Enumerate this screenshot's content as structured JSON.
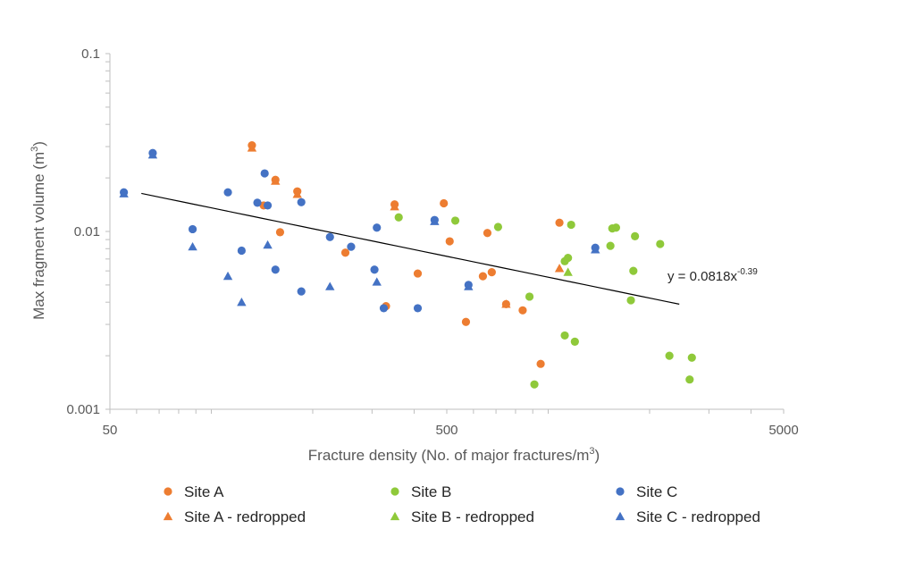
{
  "chart_data": {
    "type": "scatter",
    "x_scale": "log",
    "y_scale": "log",
    "xlabel": "Fracture density (No. of major fractures/m",
    "xlabel_sup": "3",
    "xlabel_end": ")",
    "ylabel": "Max fragment volume (m",
    "ylabel_sup": "3",
    "ylabel_end": ")",
    "xlim": [
      50,
      5000
    ],
    "ylim": [
      0.001,
      0.1
    ],
    "x_ticks": [
      {
        "value": 50,
        "label": "50"
      },
      {
        "value": 500,
        "label": "500"
      },
      {
        "value": 5000,
        "label": "5000"
      }
    ],
    "y_ticks": [
      {
        "value": 0.1,
        "label": "0.1"
      },
      {
        "value": 0.01,
        "label": "0.01"
      },
      {
        "value": 0.001,
        "label": "0.001"
      }
    ],
    "grid": false,
    "legend_position": "bottom",
    "trendline": {
      "equation_prefix": "y = 0.0818x",
      "equation_exp": "-0.39",
      "a": 0.0818,
      "b": -0.39,
      "x_range": [
        62,
        2450
      ]
    },
    "series": [
      {
        "name": "Site A",
        "marker": "circle",
        "color": "#ED7D31",
        "points": [
          [
            132,
            0.0305
          ],
          [
            143,
            0.014
          ],
          [
            155,
            0.0195
          ],
          [
            160,
            0.0099
          ],
          [
            180,
            0.0168
          ],
          [
            250,
            0.0076
          ],
          [
            330,
            0.0038
          ],
          [
            350,
            0.0142
          ],
          [
            410,
            0.0058
          ],
          [
            490,
            0.0144
          ],
          [
            510,
            0.0088
          ],
          [
            570,
            0.0031
          ],
          [
            640,
            0.0056
          ],
          [
            660,
            0.0098
          ],
          [
            680,
            0.0059
          ],
          [
            750,
            0.0039
          ],
          [
            840,
            0.0036
          ],
          [
            950,
            0.0018
          ],
          [
            1080,
            0.0112
          ]
        ]
      },
      {
        "name": "Site A - redropped",
        "marker": "triangle",
        "color": "#ED7D31",
        "points": [
          [
            132,
            0.0295
          ],
          [
            155,
            0.0192
          ],
          [
            180,
            0.0162
          ],
          [
            350,
            0.0138
          ],
          [
            750,
            0.0039
          ],
          [
            1080,
            0.0062
          ]
        ]
      },
      {
        "name": "Site B",
        "marker": "circle",
        "color": "#8FC93A",
        "points": [
          [
            360,
            0.012
          ],
          [
            530,
            0.0115
          ],
          [
            710,
            0.0106
          ],
          [
            880,
            0.0043
          ],
          [
            910,
            0.00138
          ],
          [
            1120,
            0.0026
          ],
          [
            1120,
            0.0068
          ],
          [
            1145,
            0.0071
          ],
          [
            1170,
            0.0109
          ],
          [
            1200,
            0.0024
          ],
          [
            1530,
            0.0083
          ],
          [
            1550,
            0.0104
          ],
          [
            1590,
            0.0105
          ],
          [
            1760,
            0.0041
          ],
          [
            1790,
            0.006
          ],
          [
            1810,
            0.0094
          ],
          [
            2150,
            0.0085
          ],
          [
            2290,
            0.002
          ],
          [
            2630,
            0.00147
          ],
          [
            2670,
            0.00195
          ]
        ]
      },
      {
        "name": "Site B - redropped",
        "marker": "triangle",
        "color": "#8FC93A",
        "points": [
          [
            1145,
            0.0059
          ]
        ]
      },
      {
        "name": "Site C",
        "marker": "circle",
        "color": "#4472C4",
        "points": [
          [
            55,
            0.0166
          ],
          [
            67,
            0.0276
          ],
          [
            88,
            0.0103
          ],
          [
            112,
            0.0166
          ],
          [
            123,
            0.0078
          ],
          [
            137,
            0.0145
          ],
          [
            144,
            0.0212
          ],
          [
            147,
            0.014
          ],
          [
            155,
            0.0061
          ],
          [
            185,
            0.0146
          ],
          [
            185,
            0.0046
          ],
          [
            225,
            0.0093
          ],
          [
            260,
            0.0082
          ],
          [
            305,
            0.0061
          ],
          [
            310,
            0.0105
          ],
          [
            325,
            0.0037
          ],
          [
            410,
            0.0037
          ],
          [
            460,
            0.0116
          ],
          [
            580,
            0.005
          ],
          [
            1380,
            0.0081
          ]
        ]
      },
      {
        "name": "Site C - redropped",
        "marker": "triangle",
        "color": "#4472C4",
        "points": [
          [
            55,
            0.0163
          ],
          [
            67,
            0.027
          ],
          [
            88,
            0.0082
          ],
          [
            112,
            0.0056
          ],
          [
            123,
            0.004
          ],
          [
            147,
            0.0084
          ],
          [
            225,
            0.0049
          ],
          [
            310,
            0.0052
          ],
          [
            460,
            0.0114
          ],
          [
            580,
            0.0049
          ],
          [
            1380,
            0.0079
          ]
        ]
      }
    ]
  }
}
